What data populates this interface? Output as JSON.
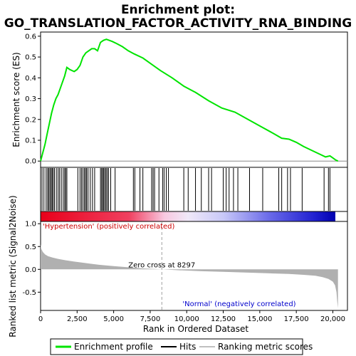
{
  "chart_data": {
    "type": "line",
    "title_line1": "Enrichment plot:",
    "title_line2": "GO_TRANSLATION_FACTOR_ACTIVITY_RNA_BINDING",
    "xlabel": "Rank in Ordered Dataset",
    "ylabel_top": "Enrichment score (ES)",
    "ylabel_bottom": "Ranked list metric (Signal2Noise)",
    "x_range": [
      0,
      21000
    ],
    "x_ticks": [
      0,
      2500,
      5000,
      7500,
      10000,
      12500,
      15000,
      17500,
      20000
    ],
    "es_ylim": [
      -0.03,
      0.62
    ],
    "es_ticks": [
      0.0,
      0.1,
      0.2,
      0.3,
      0.4,
      0.5,
      0.6
    ],
    "metric_ylim": [
      -0.9,
      1.05
    ],
    "metric_ticks": [
      -0.5,
      0.0,
      0.5,
      1.0
    ],
    "es_curve": {
      "x": [
        0,
        150,
        300,
        450,
        600,
        750,
        900,
        1050,
        1200,
        1350,
        1500,
        1650,
        1800,
        2000,
        2300,
        2500,
        2700,
        2900,
        3100,
        3300,
        3500,
        3700,
        3900,
        4100,
        4300,
        4500,
        4700,
        4900,
        5200,
        5600,
        6000,
        6400,
        7000,
        7600,
        8200,
        9000,
        9800,
        10600,
        11500,
        12400,
        13300,
        14200,
        15100,
        16000,
        16500,
        17000,
        17500,
        18000,
        18600,
        19200,
        19500,
        19800,
        20000,
        20200,
        20350
      ],
      "y": [
        0.0,
        0.04,
        0.08,
        0.13,
        0.18,
        0.23,
        0.27,
        0.3,
        0.32,
        0.35,
        0.38,
        0.41,
        0.45,
        0.44,
        0.43,
        0.44,
        0.46,
        0.5,
        0.52,
        0.53,
        0.54,
        0.54,
        0.53,
        0.57,
        0.58,
        0.585,
        0.58,
        0.575,
        0.565,
        0.55,
        0.53,
        0.515,
        0.495,
        0.465,
        0.435,
        0.4,
        0.36,
        0.33,
        0.29,
        0.255,
        0.235,
        0.2,
        0.165,
        0.13,
        0.11,
        0.105,
        0.09,
        0.07,
        0.05,
        0.03,
        0.02,
        0.025,
        0.015,
        0.005,
        0.0
      ]
    },
    "hits": [
      100,
      230,
      380,
      480,
      560,
      640,
      720,
      790,
      860,
      950,
      1080,
      1200,
      1300,
      1420,
      1550,
      1650,
      1720,
      1800,
      2550,
      2700,
      2800,
      2900,
      3000,
      3080,
      3150,
      3250,
      3400,
      3550,
      3700,
      4100,
      4180,
      4250,
      4320,
      4400,
      4480,
      4560,
      4650,
      4800,
      5100,
      6350,
      6450,
      6800,
      7000,
      7600,
      7700,
      7800,
      8100,
      8350,
      8450,
      8600,
      8750,
      9800,
      10100,
      10600,
      11000,
      11500,
      11700,
      12500,
      12700,
      12900,
      13200,
      13500,
      14300,
      15200,
      16300,
      16500,
      16900,
      17100,
      17900,
      19400,
      19700,
      19800
    ],
    "metric_curve": {
      "x": [
        0,
        50,
        150,
        300,
        500,
        800,
        1200,
        1700,
        2300,
        3000,
        4000,
        5000,
        6000,
        7000,
        8297,
        9500,
        11000,
        12500,
        14000,
        15500,
        17000,
        18000,
        18800,
        19300,
        19700,
        20000,
        20150,
        20250,
        20300,
        20350
      ],
      "y": [
        0.55,
        0.45,
        0.38,
        0.33,
        0.29,
        0.26,
        0.23,
        0.2,
        0.17,
        0.14,
        0.1,
        0.07,
        0.045,
        0.02,
        0.0,
        -0.02,
        -0.04,
        -0.055,
        -0.07,
        -0.085,
        -0.1,
        -0.12,
        -0.14,
        -0.17,
        -0.21,
        -0.27,
        -0.35,
        -0.5,
        -0.7,
        -0.85
      ]
    },
    "zero_cross_label": "Zero cross at 8297",
    "zero_cross_x": 8297,
    "positive_label": "'Hypertension' (positively correlated)",
    "negative_label": "'Normal' (negatively correlated)",
    "legend": [
      "Enrichment profile",
      "Hits",
      "Ranking metric scores"
    ],
    "colors": {
      "es_line": "#00e400",
      "hit": "#000000",
      "metric_fill": "#b0b0b0",
      "positive_text": "#cc0000",
      "negative_text": "#0000cc",
      "zero_cross_line": "#a0a0a0"
    }
  }
}
